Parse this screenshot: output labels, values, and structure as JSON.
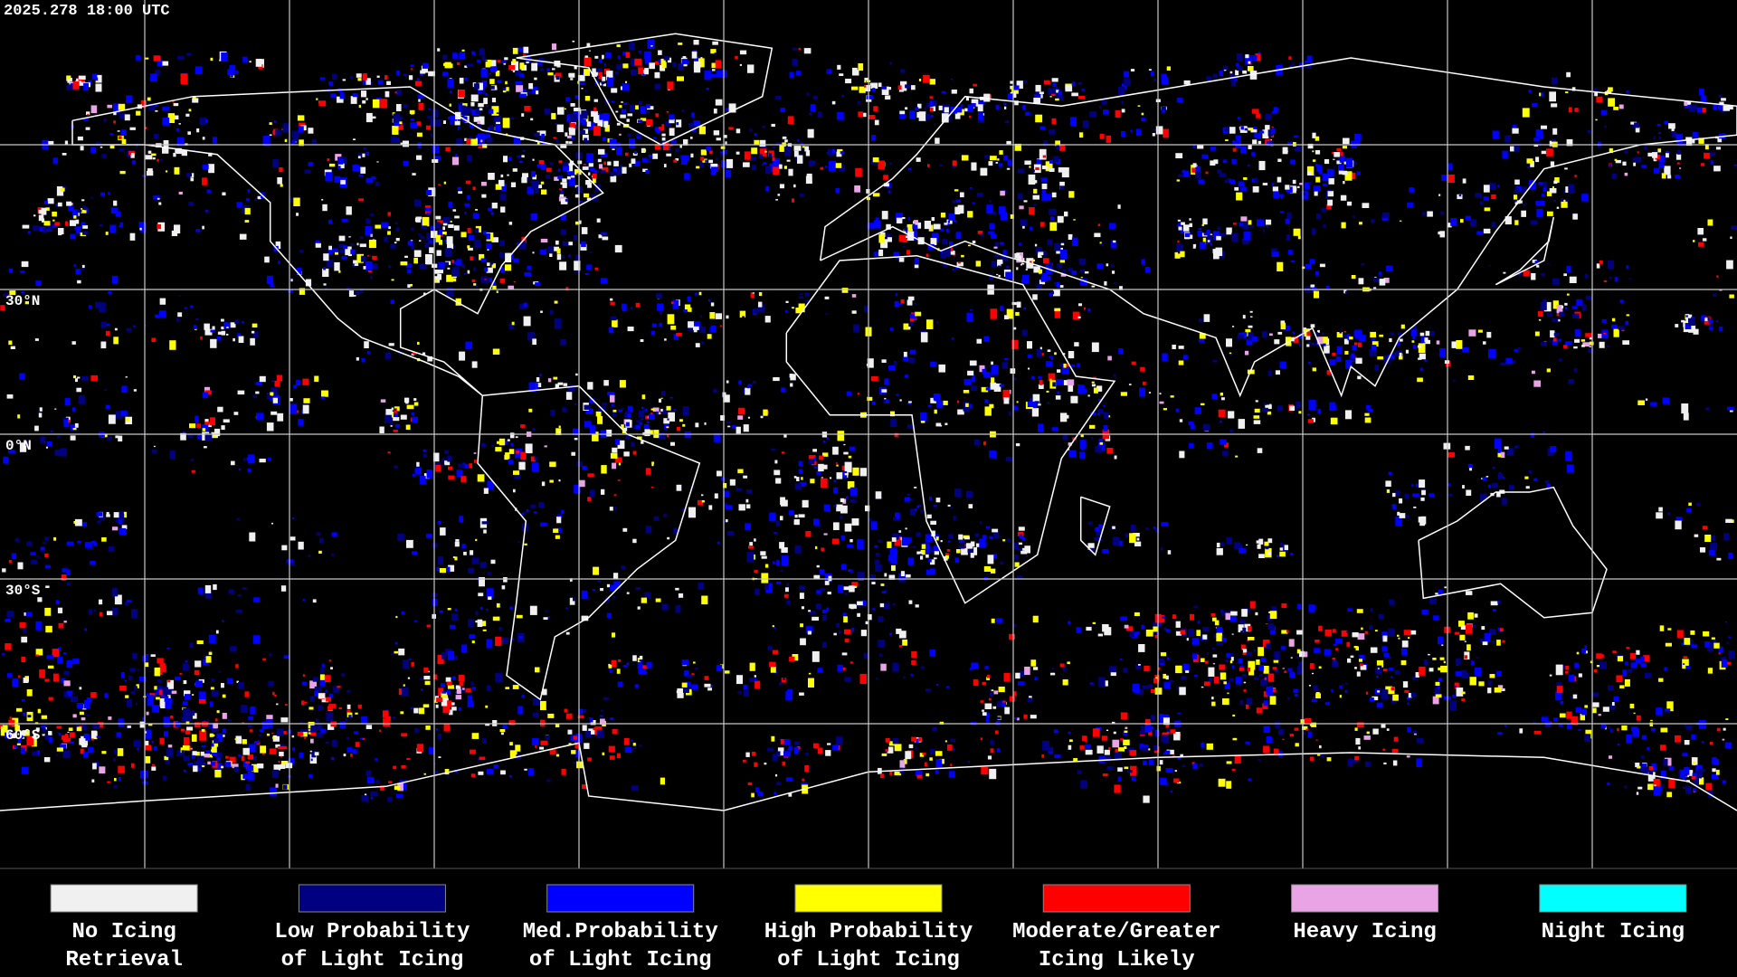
{
  "header": {
    "title": "2025.278 18:00 UTC"
  },
  "map": {
    "latitude_labels": [
      "30°N",
      "0°N",
      "30°S",
      "60°S"
    ]
  },
  "legend": {
    "items": [
      {
        "label_lines": [
          "No Icing",
          "Retrieval"
        ],
        "color": "#f0f0f0"
      },
      {
        "label_lines": [
          "Low Probability",
          "of Light Icing"
        ],
        "color": "#000080"
      },
      {
        "label_lines": [
          "Med.Probability",
          "of Light Icing"
        ],
        "color": "#0000ff"
      },
      {
        "label_lines": [
          "High Probability",
          "of Light Icing"
        ],
        "color": "#ffff00"
      },
      {
        "label_lines": [
          "Moderate/Greater",
          "Icing Likely"
        ],
        "color": "#ff0000"
      },
      {
        "label_lines": [
          "Heavy Icing"
        ],
        "color": "#e8a4e4"
      },
      {
        "label_lines": [
          "Night Icing"
        ],
        "color": "#00ffff"
      }
    ]
  }
}
